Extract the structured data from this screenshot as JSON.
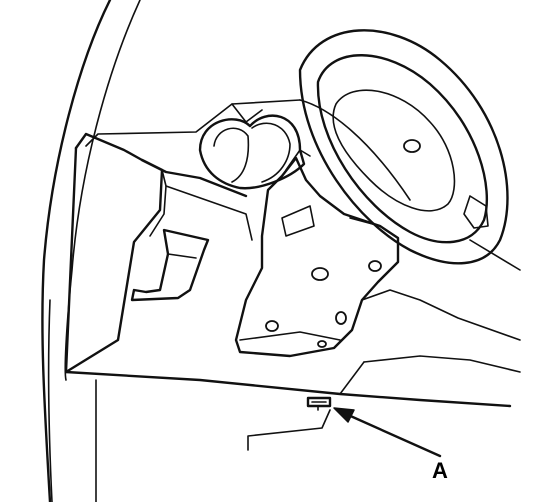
{
  "callout": {
    "label": "A"
  },
  "colors": {
    "line": "#111111",
    "background": "#ffffff"
  }
}
